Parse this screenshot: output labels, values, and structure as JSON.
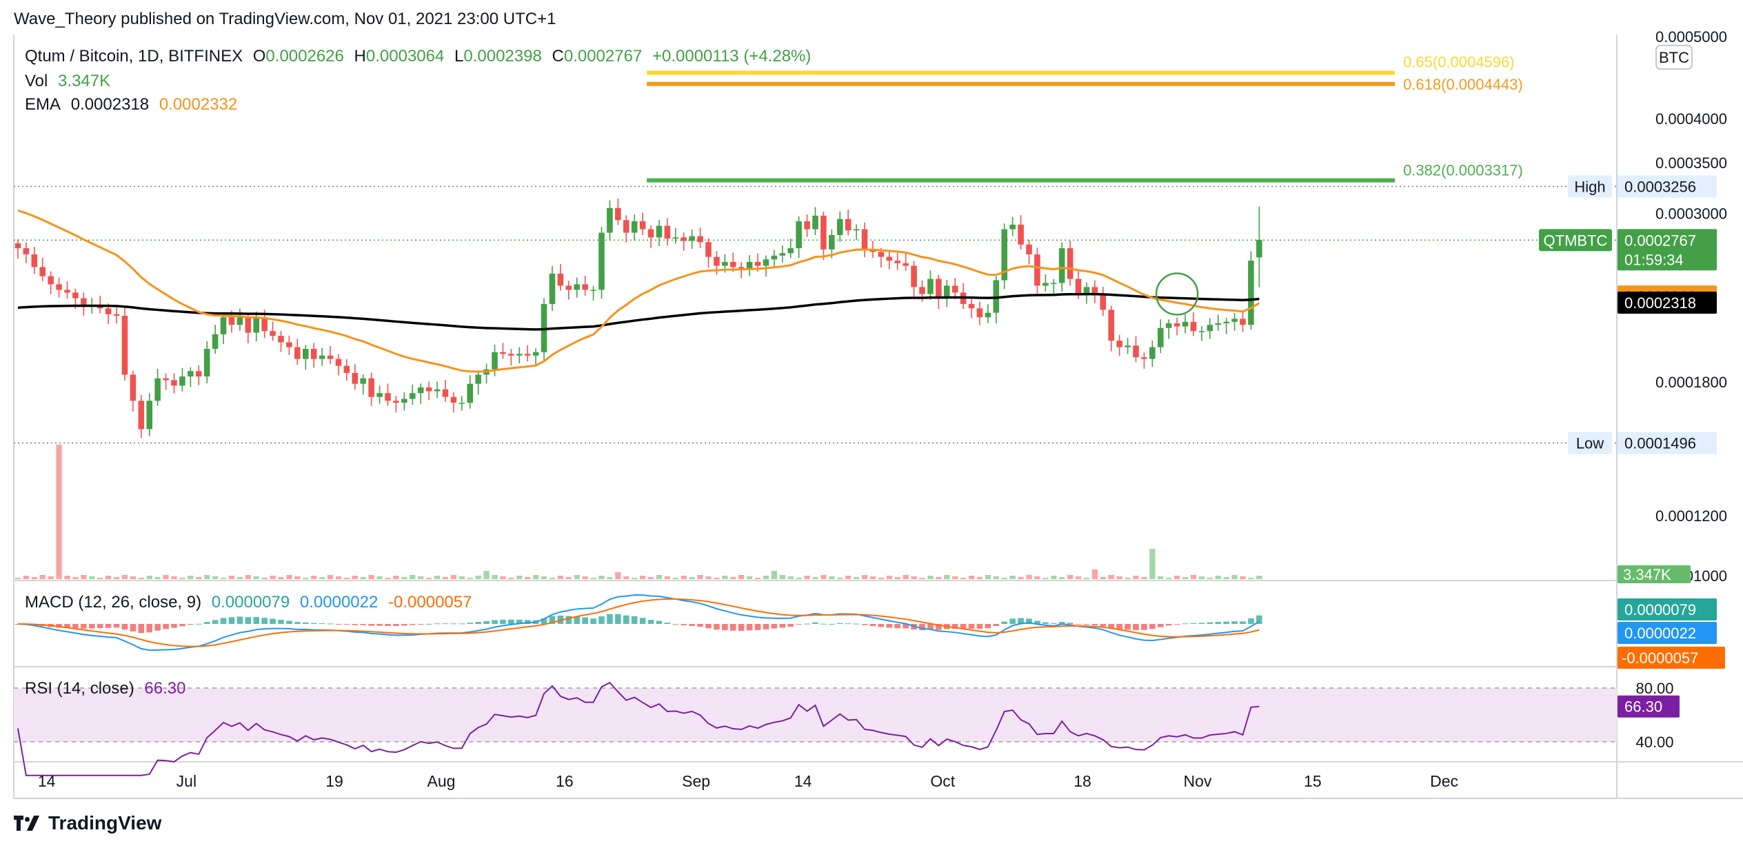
{
  "header": {
    "published": "Wave_Theory published on TradingView.com, Nov 01, 2021 23:00 UTC+1"
  },
  "legend": {
    "symbol": "Qtum / Bitcoin, 1D, BITFINEX",
    "o_label": "O",
    "o": "0.0002626",
    "h_label": "H",
    "h": "0.0003064",
    "l_label": "L",
    "l": "0.0002398",
    "c_label": "C",
    "c": "0.0002767",
    "change": "+0.0000113 (+4.28%)",
    "vol_label": "Vol",
    "vol": "3.347K",
    "ema_label": "EMA",
    "ema1": "0.0002318",
    "ema2": "0.0002332",
    "macd_label": "MACD (12, 26, close, 9)",
    "macd_hist": "0.0000079",
    "macd_line": "0.0000022",
    "macd_signal": "-0.0000057",
    "rsi_label": "RSI (14, close)",
    "rsi": "66.30"
  },
  "footer": {
    "brand": "TradingView"
  },
  "colors": {
    "up": "#26a69a",
    "upBody": "#43a047",
    "down": "#ef5350",
    "ema_fast": "#f7931a",
    "ema_slow": "#000000",
    "fib065": "#fdd835",
    "fib0618": "#f59b1e",
    "fib0382": "#4caf50",
    "macd": "#2196f3",
    "signal": "#ff6d00",
    "rsi": "#7b1fa2",
    "rsiBand": "#f3e5f5"
  },
  "chart_data": {
    "type": "candlestick",
    "symbol": "QTMBTC",
    "interval": "1D",
    "y_scale": "log",
    "price_axis_ticks": [
      "0.0004000",
      "0.0003500",
      "0.0003000",
      "0.0001800",
      "0.0001200",
      "0.0001000"
    ],
    "price_axis_top_partial": "0.0005000",
    "axis_unit": "BTC",
    "x_ticks": [
      "14",
      "Jul",
      "19",
      "Aug",
      "16",
      "Sep",
      "14",
      "Oct",
      "18",
      "Nov",
      "15",
      "Dec"
    ],
    "x_tick_dates": [
      "2021-06-14",
      "2021-07-01",
      "2021-07-19",
      "2021-08-01",
      "2021-08-16",
      "2021-09-01",
      "2021-09-14",
      "2021-10-01",
      "2021-10-18",
      "2021-11-01",
      "2021-11-15",
      "2021-12-01"
    ],
    "first_date": "2021-06-10",
    "last_date": "2021-11-01",
    "high": {
      "label": "High",
      "value": "0.0003256"
    },
    "low": {
      "label": "Low",
      "value": "0.0001496"
    },
    "last_price": {
      "label": "QTMBTC",
      "value": "0.0002767",
      "countdown": "01:59:34"
    },
    "ema_fast_value": "0.0002332",
    "ema_slow_value": "0.0002318",
    "fib_levels": [
      {
        "ratio": "0.65",
        "label": "0.65(0.0004596)",
        "value": 0.0004596,
        "from": "2021-08-26",
        "to": "2021-11-25"
      },
      {
        "ratio": "0.618",
        "label": "0.618(0.0004443)",
        "value": 0.0004443,
        "from": "2021-08-26",
        "to": "2021-11-25"
      },
      {
        "ratio": "0.382",
        "label": "0.382(0.0003317)",
        "value": 0.0003317,
        "from": "2021-08-26",
        "to": "2021-11-25"
      }
    ],
    "annotation_circle": {
      "date": "2021-10-29",
      "price": 0.000235
    },
    "candles_close": [
      0.00027,
      0.000265,
      0.000255,
      0.000248,
      0.000242,
      0.000238,
      0.000236,
      0.000232,
      0.000226,
      0.000227,
      0.000225,
      0.000221,
      0.00022,
      0.000184,
      0.00017,
      0.000156,
      0.00017,
      0.000182,
      0.000181,
      0.000178,
      0.000183,
      0.000186,
      0.000183,
      0.000199,
      0.000208,
      0.000219,
      0.000214,
      0.000219,
      0.000209,
      0.000219,
      0.00021,
      0.000207,
      0.000203,
      0.0002,
      0.000193,
      0.000199,
      0.000193,
      0.000195,
      0.000193,
      0.000189,
      0.000185,
      0.000179,
      0.000182,
      0.000172,
      0.000174,
      0.00017,
      0.000169,
      0.000171,
      0.000174,
      0.000177,
      0.000175,
      0.000176,
      0.000172,
      0.000169,
      0.000169,
      0.000179,
      0.000184,
      0.000187,
      0.000197,
      0.000196,
      0.000195,
      0.000196,
      0.000195,
      0.000197,
      0.000228,
      0.00025,
      0.000241,
      0.000238,
      0.000242,
      0.000238,
      0.000238,
      0.000283,
      0.000305,
      0.000294,
      0.000283,
      0.000293,
      0.000286,
      0.000279,
      0.000289,
      0.000278,
      0.000279,
      0.000276,
      0.00028,
      0.000275,
      0.000263,
      0.000256,
      0.000259,
      0.000255,
      0.000254,
      0.000259,
      0.000256,
      0.000261,
      0.000264,
      0.000266,
      0.00027,
      0.000293,
      0.000286,
      0.000298,
      0.000269,
      0.000281,
      0.000295,
      0.000285,
      0.000286,
      0.000269,
      0.000267,
      0.000263,
      0.00026,
      0.000258,
      0.000256,
      0.00024,
      0.000235,
      0.000246,
      0.000232,
      0.000241,
      0.000236,
      0.000228,
      0.000225,
      0.000219,
      0.000222,
      0.000245,
      0.000286,
      0.00029,
      0.000273,
      0.000265,
      0.000241,
      0.000243,
      0.000243,
      0.00027,
      0.000246,
      0.000235,
      0.00024,
      0.000234,
      0.000224,
      0.000204,
      0.0002,
      0.000201,
      0.000194,
      0.000193,
      0.0002,
      0.000212,
      0.000215,
      0.000213,
      0.000216,
      0.00021,
      0.00021,
      0.000214,
      0.000215,
      0.000216,
      0.000218,
      0.000214,
      0.00026,
      0.000277
    ],
    "volume_note": "Vol 3.347K on last bar",
    "rsi_band": [
      40,
      80
    ],
    "rsi_last": 66.3,
    "rsi_axis_ticks": [
      "80.00",
      "40.00"
    ]
  }
}
